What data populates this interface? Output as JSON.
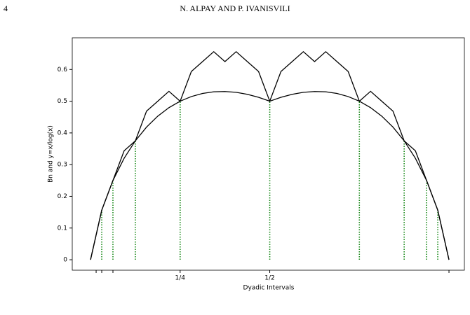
{
  "header": {
    "page_number": "4",
    "running_head": "N. ALPAY AND P. IVANISVILI"
  },
  "chart_data": {
    "type": "line",
    "xlabel": "Dyadic Intervals",
    "ylabel": "Bn and y=x/log(x)",
    "x": [
      0,
      0.03125,
      0.0625,
      0.09375,
      0.125,
      0.15625,
      0.1875,
      0.21875,
      0.25,
      0.28125,
      0.3125,
      0.34375,
      0.375,
      0.40625,
      0.4375,
      0.46875,
      0.5,
      0.53125,
      0.5625,
      0.59375,
      0.625,
      0.65625,
      0.6875,
      0.71875,
      0.75,
      0.78125,
      0.8125,
      0.84375,
      0.875,
      0.90625,
      0.9375,
      0.96875,
      1
    ],
    "series": [
      {
        "name": "Bn",
        "color": "#000000",
        "values": [
          0,
          0.15625,
          0.25,
          0.34375,
          0.375,
          0.46875,
          0.5,
          0.53125,
          0.5,
          0.59375,
          0.625,
          0.65625,
          0.625,
          0.65625,
          0.625,
          0.59375,
          0.5,
          0.59375,
          0.625,
          0.65625,
          0.625,
          0.65625,
          0.625,
          0.59375,
          0.5,
          0.53125,
          0.5,
          0.46875,
          0.375,
          0.34375,
          0.25,
          0.15625,
          0
        ]
      },
      {
        "name": "y=x/log(x)",
        "color": "#000000",
        "values": [
          0,
          0.15625,
          0.25,
          0.3202,
          0.375,
          0.4184,
          0.4528,
          0.4797,
          0.5,
          0.5147,
          0.5244,
          0.5298,
          0.5306,
          0.528,
          0.5218,
          0.5124,
          0.5,
          0.5124,
          0.5218,
          0.528,
          0.5306,
          0.5298,
          0.5244,
          0.5147,
          0.5,
          0.4797,
          0.4528,
          0.4184,
          0.375,
          0.3202,
          0.25,
          0.15625,
          0
        ]
      }
    ],
    "vlines": {
      "color": "#1a8a1a",
      "x": [
        0.03125,
        0.0625,
        0.125,
        0.25,
        0.5,
        0.75,
        0.875,
        0.9375,
        0.96875
      ]
    },
    "xlim": [
      -0.051,
      1.043
    ],
    "ylim": [
      -0.033,
      0.7
    ],
    "xticks": [
      {
        "value": 0.25,
        "label": "1/4"
      },
      {
        "value": 0.5,
        "label": "1/2"
      }
    ],
    "xminorticks": [
      0.015625,
      0.03125,
      0.0625,
      1
    ],
    "yticks": [
      0.0,
      0.1,
      0.2,
      0.3,
      0.4,
      0.5,
      0.6
    ]
  }
}
